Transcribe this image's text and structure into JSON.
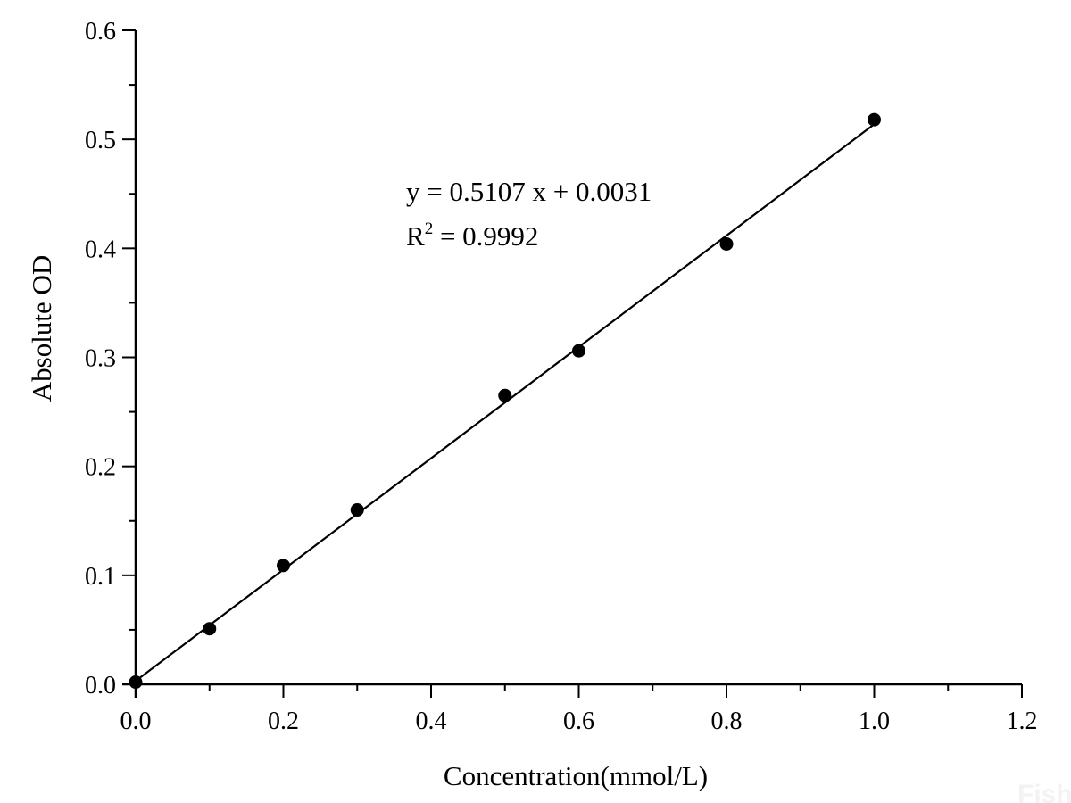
{
  "chart_data": {
    "type": "scatter",
    "xlabel": "Concentration(mmol/L)",
    "ylabel": "Absolute OD",
    "xlim": [
      0,
      1.2
    ],
    "ylim": [
      0,
      0.6
    ],
    "xticks": [
      "0.0",
      "0.2",
      "0.4",
      "0.6",
      "0.8",
      "1.0",
      "1.2"
    ],
    "yticks": [
      "0.0",
      "0.1",
      "0.2",
      "0.3",
      "0.4",
      "0.5",
      "0.6"
    ],
    "grid": false,
    "series": [
      {
        "x": [
          0,
          0.1,
          0.2,
          0.3,
          0.5,
          0.6,
          0.8,
          1.0
        ],
        "y": [
          0.002,
          0.051,
          0.109,
          0.16,
          0.265,
          0.306,
          0.404,
          0.518
        ]
      }
    ],
    "fit": {
      "slope": 0.5107,
      "intercept": 0.0031,
      "x_range": [
        0,
        1.0
      ]
    },
    "annotations": {
      "equation": "y = 0.5107 x + 0.0031",
      "r2_prefix": "R",
      "r2_sup": "2",
      "r2_value": " = 0.9992"
    },
    "colors": {
      "marker": "#000000",
      "line": "#000000"
    },
    "watermark": "Fish"
  }
}
